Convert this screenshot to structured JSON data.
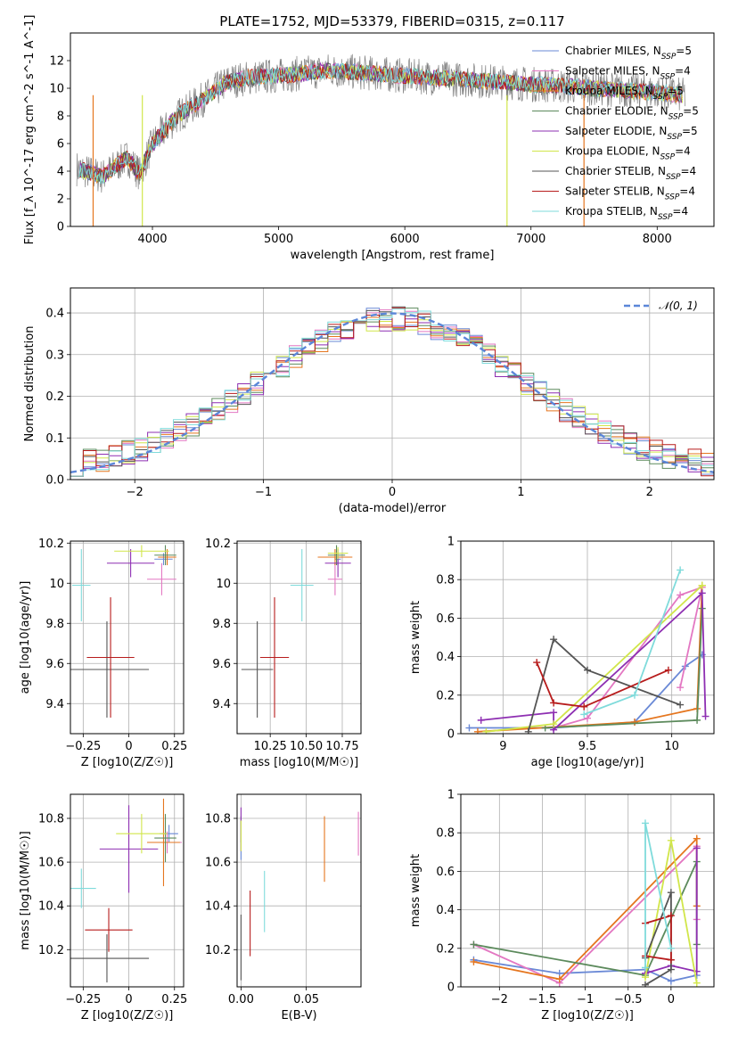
{
  "title": "PLATE=1752, MJD=53379, FIBERID=0315, z=0.117",
  "model_colors": [
    "#6a89d6",
    "#e377c2",
    "#e5761f",
    "#5c8a5c",
    "#8e2fb2",
    "#d1e64a",
    "#555555",
    "#b71c1c",
    "#7fdbdb"
  ],
  "chart_data": [
    {
      "type": "line",
      "id": "spectrum",
      "xlabel": "wavelength [Angstrom, rest frame]",
      "ylabel": "Flux [f_λ 10^-17 erg cm^-2 s^-1 A^-1]",
      "xlim": [
        3350,
        8450
      ],
      "ylim": [
        0,
        14
      ],
      "xticks": [
        4000,
        5000,
        6000,
        7000,
        8000
      ],
      "yticks": [
        0,
        2,
        4,
        6,
        8,
        10,
        12
      ],
      "grid": false,
      "legend_placement": "right",
      "series": [
        {
          "name": "Chabrier MILES, N_SSP=5"
        },
        {
          "name": "Salpeter MILES, N_SSP=4"
        },
        {
          "name": "Kroupa MILES, N_SSP=5"
        },
        {
          "name": "Chabrier ELODIE, N_SSP=5"
        },
        {
          "name": "Salpeter ELODIE, N_SSP=5"
        },
        {
          "name": "Kroupa ELODIE, N_SSP=4"
        },
        {
          "name": "Chabrier STELIB, N_SSP=4"
        },
        {
          "name": "Salpeter STELIB, N_SSP=4"
        },
        {
          "name": "Kroupa STELIB, N_SSP=4"
        }
      ],
      "continuum": {
        "x": [
          3400,
          3600,
          3800,
          3900,
          4000,
          4200,
          4400,
          4600,
          4800,
          5000,
          5400,
          6000,
          6500,
          7000,
          7500,
          8000,
          8200
        ],
        "y": [
          4.2,
          3.6,
          5.0,
          3.8,
          6.0,
          8.0,
          9.2,
          10.5,
          10.8,
          10.9,
          11.3,
          10.9,
          10.6,
          10.3,
          10.0,
          9.7,
          9.5
        ]
      }
    },
    {
      "type": "line",
      "id": "residual_histogram",
      "xlabel": "(data-model)/error",
      "ylabel": "Normed distribution",
      "xlim": [
        -2.5,
        2.5
      ],
      "ylim": [
        0,
        0.46
      ],
      "xticks": [
        -2,
        -1,
        0,
        1,
        2
      ],
      "yticks": [
        0.0,
        0.1,
        0.2,
        0.3,
        0.4
      ],
      "grid": true,
      "legend": "𝒩(0, 1)",
      "legend_placement": "top-right",
      "bin_width": 0.1
    },
    {
      "type": "scatter",
      "id": "age_vs_Z",
      "xlabel": "Z [log10(Z/Z☉)]",
      "ylabel": "age  [log10(age/yr)]",
      "xlim": [
        -0.32,
        0.3
      ],
      "ylim": [
        9.25,
        10.21
      ],
      "xticks": [
        -0.25,
        0.0,
        0.25
      ],
      "yticks": [
        9.4,
        9.6,
        9.8,
        10.0,
        10.2
      ],
      "grid": true,
      "points": [
        {
          "x": 0.19,
          "y": 10.12,
          "xerr": 0.05,
          "yerr": 0.03
        },
        {
          "x": 0.18,
          "y": 10.02,
          "xerr": 0.08,
          "yerr": 0.08
        },
        {
          "x": 0.21,
          "y": 10.13,
          "xerr": 0.05,
          "yerr": 0.04
        },
        {
          "x": 0.2,
          "y": 10.14,
          "xerr": 0.06,
          "yerr": 0.05
        },
        {
          "x": 0.01,
          "y": 10.1,
          "xerr": 0.13,
          "yerr": 0.07
        },
        {
          "x": 0.07,
          "y": 10.16,
          "xerr": 0.15,
          "yerr": 0.03
        },
        {
          "x": -0.12,
          "y": 9.57,
          "xerr": 0.23,
          "yerr": 0.24
        },
        {
          "x": -0.1,
          "y": 9.63,
          "xerr": 0.13,
          "yerr": 0.3
        },
        {
          "x": -0.26,
          "y": 9.99,
          "xerr": 0.05,
          "yerr": 0.18
        }
      ]
    },
    {
      "type": "scatter",
      "id": "age_vs_mass",
      "xlabel": "mass [log10(M/M☉)]",
      "ylabel": "",
      "xlim": [
        10.02,
        10.88
      ],
      "ylim": [
        9.25,
        10.21
      ],
      "xticks": [
        10.25,
        10.5,
        10.75
      ],
      "xtick_labels": [
        "10.25",
        "10.50",
        "10.75"
      ],
      "yticks": [
        9.4,
        9.6,
        9.8,
        10.0,
        10.2
      ],
      "grid": true,
      "points": [
        {
          "x": 10.72,
          "y": 10.12,
          "xerr": 0.02,
          "yerr": 0.03
        },
        {
          "x": 10.7,
          "y": 10.02,
          "xerr": 0.05,
          "yerr": 0.08
        },
        {
          "x": 10.7,
          "y": 10.13,
          "xerr": 0.12,
          "yerr": 0.04
        },
        {
          "x": 10.71,
          "y": 10.14,
          "xerr": 0.06,
          "yerr": 0.05
        },
        {
          "x": 10.72,
          "y": 10.1,
          "xerr": 0.09,
          "yerr": 0.07
        },
        {
          "x": 10.72,
          "y": 10.15,
          "xerr": 0.07,
          "yerr": 0.03
        },
        {
          "x": 10.16,
          "y": 9.57,
          "xerr": 0.11,
          "yerr": 0.24
        },
        {
          "x": 10.28,
          "y": 9.63,
          "xerr": 0.1,
          "yerr": 0.3
        },
        {
          "x": 10.47,
          "y": 9.99,
          "xerr": 0.08,
          "yerr": 0.18
        }
      ]
    },
    {
      "type": "line",
      "id": "massweight_vs_age",
      "xlabel": "age  [log10(age/yr)]",
      "ylabel": "mass weight",
      "xlim": [
        8.75,
        10.25
      ],
      "ylim": [
        0,
        1
      ],
      "xticks": [
        9.0,
        9.5,
        10.0
      ],
      "yticks": [
        0.0,
        0.2,
        0.4,
        0.6,
        0.8,
        1.0
      ],
      "grid": true,
      "series": [
        {
          "x": [
            8.8,
            9.3,
            9.78,
            10.08,
            10.18
          ],
          "y": [
            0.03,
            0.03,
            0.06,
            0.35,
            0.41
          ]
        },
        {
          "x": [
            9.3,
            9.5,
            10.05,
            10.18,
            10.05
          ],
          "y": [
            0.03,
            0.08,
            0.72,
            0.76,
            0.24
          ]
        },
        {
          "x": [
            8.85,
            9.78,
            10.15,
            10.18
          ],
          "y": [
            0.01,
            0.06,
            0.13,
            0.77
          ]
        },
        {
          "x": [
            9.25,
            10.15,
            10.18
          ],
          "y": [
            0.03,
            0.07,
            0.65
          ]
        },
        {
          "x": [
            8.87,
            9.3,
            9.3,
            10.18,
            10.2
          ],
          "y": [
            0.07,
            0.11,
            0.02,
            0.73,
            0.09
          ]
        },
        {
          "x": [
            8.9,
            9.3,
            10.18
          ],
          "y": [
            0.01,
            0.05,
            0.77
          ]
        },
        {
          "x": [
            9.15,
            9.3,
            9.5,
            10.05
          ],
          "y": [
            0.01,
            0.49,
            0.33,
            0.15
          ]
        },
        {
          "x": [
            9.2,
            9.3,
            9.48,
            9.98
          ],
          "y": [
            0.37,
            0.16,
            0.14,
            0.33
          ]
        },
        {
          "x": [
            9.48,
            9.78,
            10.05
          ],
          "y": [
            0.1,
            0.2,
            0.85
          ]
        }
      ]
    },
    {
      "type": "scatter",
      "id": "mass_vs_Z",
      "xlabel": "Z [log10(Z/Z☉)]",
      "ylabel": "mass [log10(M/M☉)]",
      "xlim": [
        -0.32,
        0.3
      ],
      "ylim": [
        10.03,
        10.91
      ],
      "xticks": [
        -0.25,
        0.0,
        0.25
      ],
      "yticks": [
        10.2,
        10.4,
        10.6,
        10.8
      ],
      "grid": true,
      "points": [
        {
          "x": 0.22,
          "y": 10.73,
          "xerr": 0.05,
          "yerr": 0.04
        },
        {
          "x": 0.21,
          "y": 10.69,
          "xerr": 0.08,
          "yerr": 0.05
        },
        {
          "x": 0.19,
          "y": 10.69,
          "xerr": 0.09,
          "yerr": 0.2
        },
        {
          "x": 0.2,
          "y": 10.71,
          "xerr": 0.06,
          "yerr": 0.11
        },
        {
          "x": 0.0,
          "y": 10.66,
          "xerr": 0.16,
          "yerr": 0.2
        },
        {
          "x": 0.07,
          "y": 10.73,
          "xerr": 0.14,
          "yerr": 0.09
        },
        {
          "x": -0.12,
          "y": 10.16,
          "xerr": 0.23,
          "yerr": 0.11
        },
        {
          "x": -0.11,
          "y": 10.29,
          "xerr": 0.13,
          "yerr": 0.1
        },
        {
          "x": -0.26,
          "y": 10.48,
          "xerr": 0.08,
          "yerr": 0.09
        }
      ]
    },
    {
      "type": "scatter",
      "id": "mass_vs_ebv",
      "xlabel": "E(B-V)",
      "ylabel": "",
      "xlim": [
        -0.003,
        0.092
      ],
      "ylim": [
        10.03,
        10.91
      ],
      "xticks": [
        0.0,
        0.05
      ],
      "xtick_labels": [
        "0.00",
        "0.05"
      ],
      "yticks": [
        10.2,
        10.4,
        10.6,
        10.8
      ],
      "grid": true,
      "points": [
        {
          "x": 0.0,
          "y": 10.7,
          "xerr": 0,
          "yerr": 0.09
        },
        {
          "x": 0.09,
          "y": 10.73,
          "xerr": 0,
          "yerr": 0.1
        },
        {
          "x": 0.064,
          "y": 10.66,
          "xerr": 0,
          "yerr": 0.15
        },
        {
          "x": 0.0,
          "y": 10.75,
          "xerr": 0,
          "yerr": 0.06
        },
        {
          "x": 0.0,
          "y": 10.75,
          "xerr": 0,
          "yerr": 0.1
        },
        {
          "x": 0.0,
          "y": 10.72,
          "xerr": 0,
          "yerr": 0.07
        },
        {
          "x": 0.0,
          "y": 10.21,
          "xerr": 0,
          "yerr": 0.15
        },
        {
          "x": 0.007,
          "y": 10.32,
          "xerr": 0,
          "yerr": 0.15
        },
        {
          "x": 0.018,
          "y": 10.42,
          "xerr": 0,
          "yerr": 0.14
        }
      ]
    },
    {
      "type": "line",
      "id": "massweight_vs_Z",
      "xlabel": "Z [log10(Z/Z☉)]",
      "ylabel": "mass weight",
      "xlim": [
        -2.45,
        0.5
      ],
      "ylim": [
        0,
        1
      ],
      "xticks": [
        -2.0,
        -1.5,
        -1.0,
        -0.5,
        0.0
      ],
      "yticks": [
        0.0,
        0.2,
        0.4,
        0.6,
        0.8,
        1.0
      ],
      "grid": true,
      "series": [
        {
          "x": [
            -2.3,
            -1.3,
            -0.3,
            0.0,
            0.3
          ],
          "y": [
            0.14,
            0.07,
            0.09,
            0.03,
            0.06
          ]
        },
        {
          "x": [
            -2.3,
            -1.3,
            0.3,
            0.3
          ],
          "y": [
            0.22,
            0.02,
            0.73,
            0.35
          ]
        },
        {
          "x": [
            -2.3,
            -1.3,
            0.3,
            0.3
          ],
          "y": [
            0.13,
            0.04,
            0.77,
            0.42
          ]
        },
        {
          "x": [
            -2.3,
            -0.3,
            0.3,
            0.3
          ],
          "y": [
            0.22,
            0.06,
            0.65,
            0.22
          ]
        },
        {
          "x": [
            -0.3,
            0.0,
            0.3,
            0.3
          ],
          "y": [
            0.07,
            0.11,
            0.08,
            0.72
          ]
        },
        {
          "x": [
            -0.3,
            0.0,
            0.3
          ],
          "y": [
            0.05,
            0.76,
            0.02
          ]
        },
        {
          "x": [
            -0.3,
            0.0,
            0.0,
            -0.3
          ],
          "y": [
            0.15,
            0.49,
            0.09,
            0.01
          ]
        },
        {
          "x": [
            -0.3,
            0.0,
            0.0,
            -0.3
          ],
          "y": [
            0.33,
            0.37,
            0.14,
            0.16
          ]
        },
        {
          "x": [
            -0.3,
            -0.3,
            0.0
          ],
          "y": [
            0.1,
            0.85,
            0.2
          ]
        }
      ]
    }
  ]
}
